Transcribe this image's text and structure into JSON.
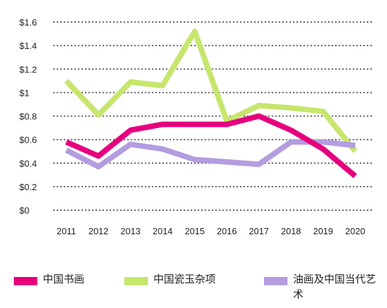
{
  "chart_data": {
    "type": "line",
    "x": [
      "2011",
      "2012",
      "2013",
      "2014",
      "2015",
      "2016",
      "2017",
      "2018",
      "2019",
      "2020"
    ],
    "y_ticks": [
      "$0",
      "$0.2",
      "$0.4",
      "$0.6",
      "$0.8",
      "$1",
      "$1.2",
      "$1.4",
      "$1.6"
    ],
    "ylim": [
      0,
      1.6
    ],
    "grid": "horizontal dotted",
    "legend_position": "bottom",
    "series": [
      {
        "name": "中国书画",
        "color": "#e6007e",
        "values": [
          0.58,
          0.46,
          0.68,
          0.73,
          0.73,
          0.73,
          0.8,
          0.68,
          0.52,
          0.29
        ]
      },
      {
        "name": "中国瓷玉杂项",
        "color": "#c6e66d",
        "values": [
          1.1,
          0.81,
          1.09,
          1.06,
          1.52,
          0.76,
          0.89,
          0.87,
          0.84,
          0.5
        ]
      },
      {
        "name": "油画及中国当代艺术",
        "color": "#b39ddf",
        "values": [
          0.51,
          0.37,
          0.56,
          0.52,
          0.43,
          0.41,
          0.39,
          0.58,
          0.58,
          0.55
        ]
      }
    ]
  }
}
